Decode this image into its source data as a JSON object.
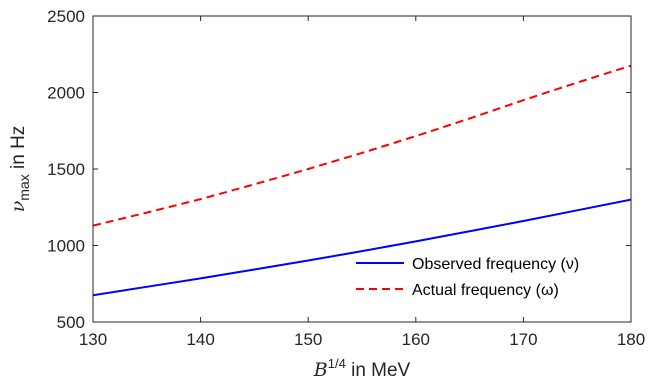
{
  "chart_data": {
    "type": "line",
    "title": "",
    "xlabel": {
      "symbol": "B",
      "superscript": "1/4",
      "suffix": " in MeV"
    },
    "ylabel": {
      "symbol": "ν",
      "subscript": "max",
      "suffix": " in Hz"
    },
    "xlim": [
      130,
      180
    ],
    "ylim": [
      500,
      2500
    ],
    "xticks": [
      130,
      140,
      150,
      160,
      170,
      180
    ],
    "yticks": [
      500,
      1000,
      1500,
      2000,
      2500
    ],
    "grid": false,
    "legend_position": "bottom-right",
    "series": [
      {
        "name": "Observed frequency (ν)",
        "color": "#0000ff",
        "style": "solid",
        "x": [
          130,
          135,
          140,
          145,
          150,
          155,
          160,
          165,
          170,
          175,
          180
        ],
        "y": [
          675,
          730,
          785,
          843,
          902,
          963,
          1027,
          1093,
          1160,
          1230,
          1300
        ]
      },
      {
        "name": "Actual frequency (ω)",
        "color": "#ff0000",
        "style": "dashed",
        "x": [
          130,
          135,
          140,
          145,
          150,
          155,
          160,
          165,
          170,
          175,
          180
        ],
        "y": [
          1130,
          1215,
          1303,
          1400,
          1500,
          1605,
          1715,
          1830,
          1950,
          2065,
          2175
        ]
      }
    ]
  }
}
